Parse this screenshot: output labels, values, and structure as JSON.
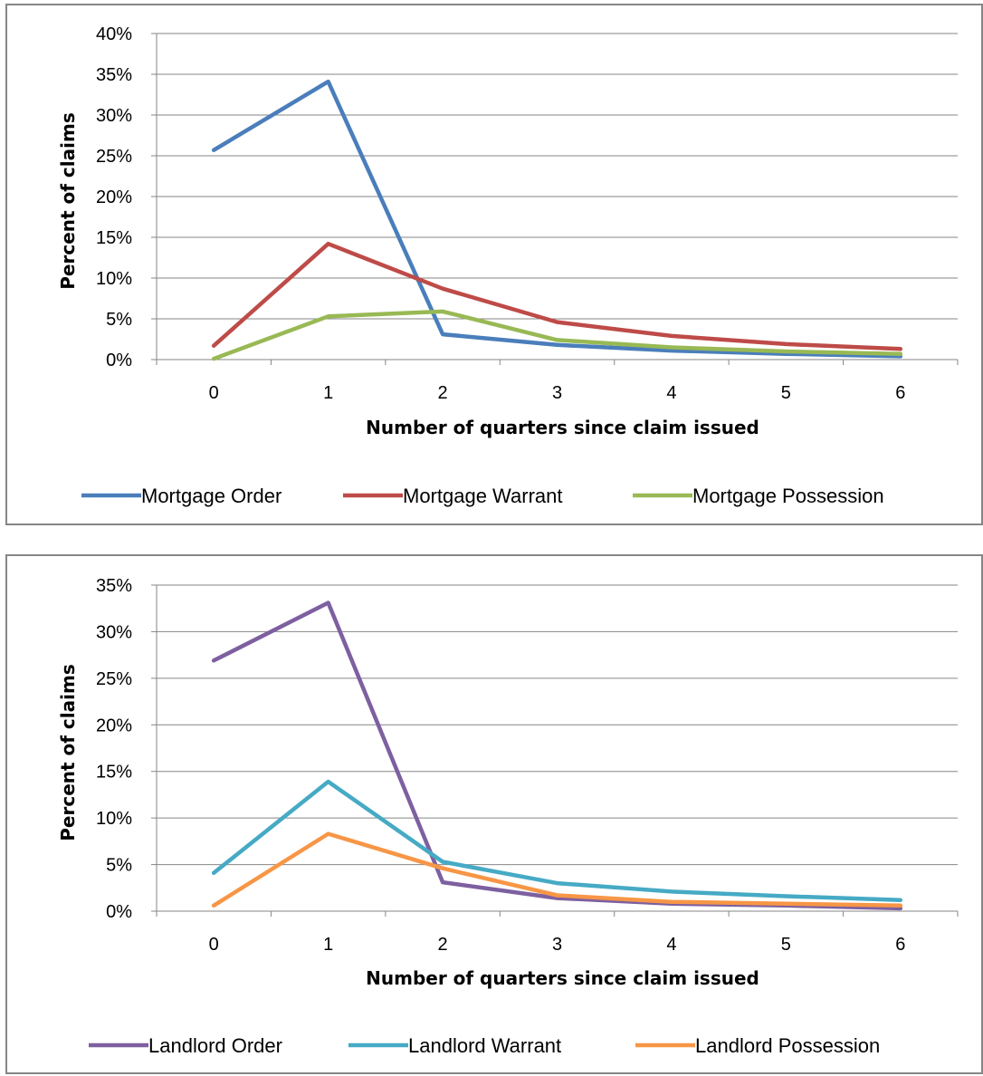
{
  "chart_data": [
    {
      "type": "line",
      "title": "",
      "xlabel": "Number of quarters since claim issued",
      "ylabel": "Percent of claims",
      "categories": [
        "0",
        "1",
        "2",
        "3",
        "4",
        "5",
        "6"
      ],
      "yticks": [
        "0%",
        "5%",
        "10%",
        "15%",
        "20%",
        "25%",
        "30%",
        "35%",
        "40%"
      ],
      "ylim": [
        0,
        40
      ],
      "grid": true,
      "legend_position": "bottom",
      "series": [
        {
          "name": "Mortgage Order",
          "color": "#4a7ebb",
          "values": [
            25.7,
            34.1,
            3.1,
            1.8,
            1.1,
            0.7,
            0.4
          ]
        },
        {
          "name": "Mortgage Warrant",
          "color": "#be4b48",
          "values": [
            1.7,
            14.2,
            8.7,
            4.6,
            2.9,
            1.9,
            1.3
          ]
        },
        {
          "name": "Mortgage Possession",
          "color": "#98b954",
          "values": [
            0.1,
            5.3,
            5.9,
            2.4,
            1.5,
            1.0,
            0.7
          ]
        }
      ]
    },
    {
      "type": "line",
      "title": "",
      "xlabel": "Number of quarters since claim issued",
      "ylabel": "Percent of claims",
      "categories": [
        "0",
        "1",
        "2",
        "3",
        "4",
        "5",
        "6"
      ],
      "yticks": [
        "0%",
        "5%",
        "10%",
        "15%",
        "20%",
        "25%",
        "30%",
        "35%"
      ],
      "ylim": [
        0,
        35
      ],
      "grid": true,
      "legend_position": "bottom",
      "series": [
        {
          "name": "Landlord Order",
          "color": "#7d60a0",
          "values": [
            26.9,
            33.1,
            3.1,
            1.4,
            0.8,
            0.6,
            0.3
          ]
        },
        {
          "name": "Landlord Warrant",
          "color": "#46aac5",
          "values": [
            4.1,
            13.9,
            5.3,
            3.0,
            2.1,
            1.6,
            1.2
          ]
        },
        {
          "name": "Landlord Possession",
          "color": "#f79646",
          "values": [
            0.6,
            8.3,
            4.6,
            1.7,
            1.0,
            0.8,
            0.6
          ]
        }
      ]
    }
  ]
}
